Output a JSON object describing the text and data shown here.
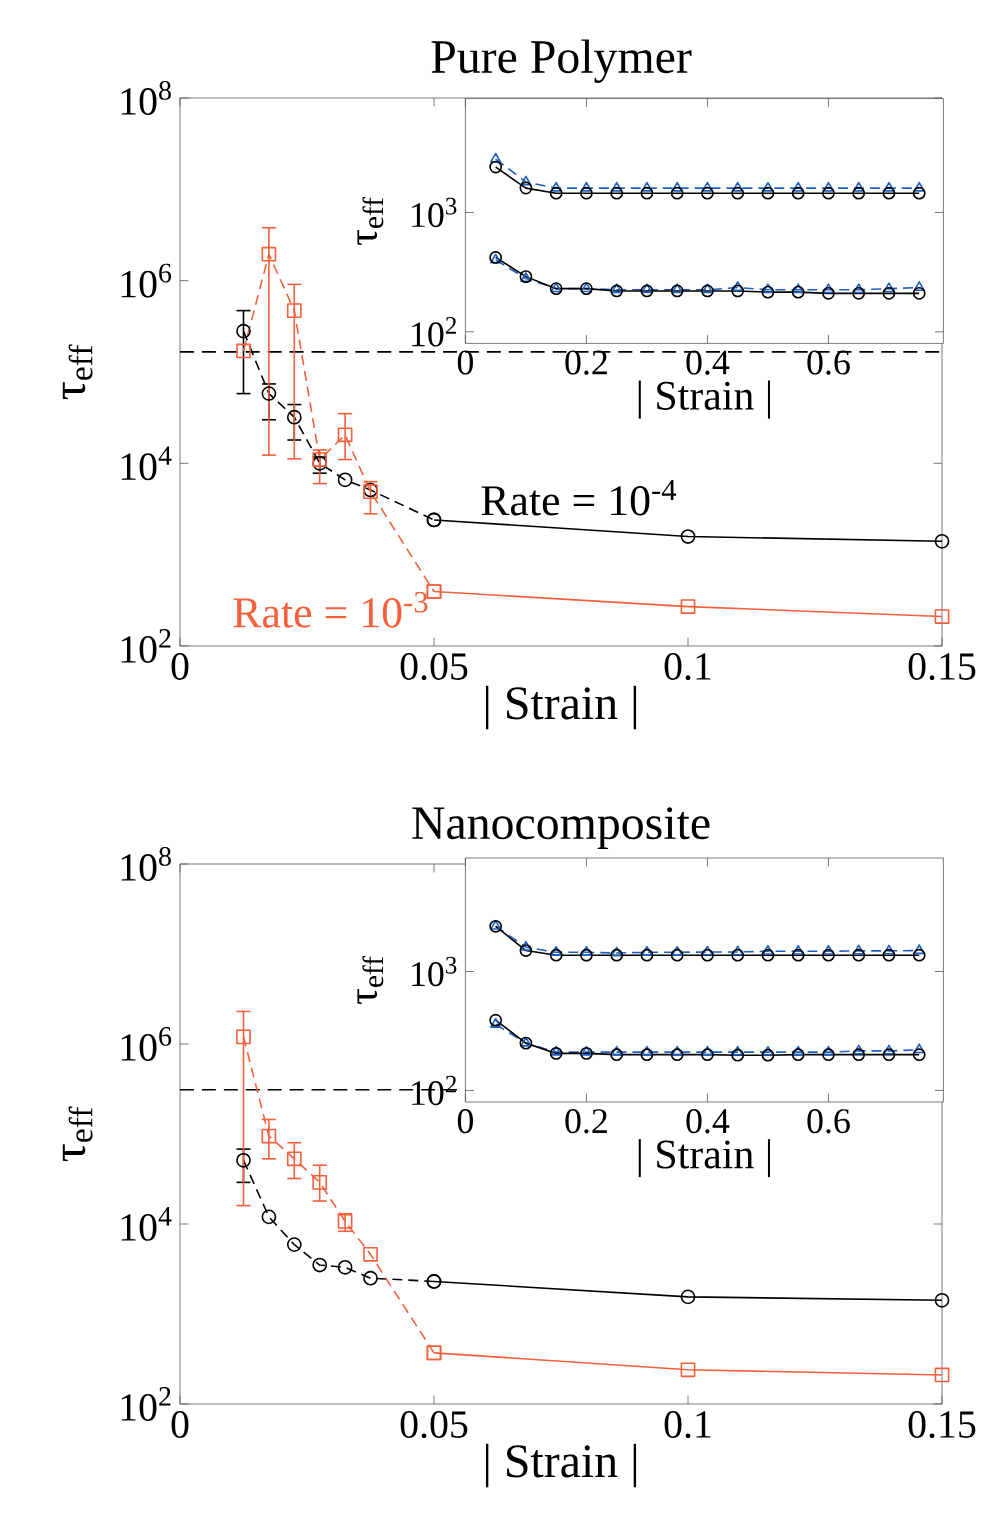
{
  "chart_data": [
    {
      "type": "line",
      "title": "Pure Polymer",
      "xlabel": "| Strain |",
      "ylabel": "τ$_{eff}$",
      "log": "y",
      "xlim": [
        0,
        0.15
      ],
      "ylim": [
        100,
        100000000
      ],
      "xticks": [
        0,
        0.05,
        0.1,
        0.15
      ],
      "yticks": [
        {
          "value": 100,
          "label": "10$^{2}$"
        },
        {
          "value": 10000,
          "label": "10$^{4}$"
        },
        {
          "value": 1000000,
          "label": "10$^{6}$"
        },
        {
          "value": 100000000,
          "label": "10$^{8}$"
        }
      ],
      "ref_lines": [
        {
          "axis": "y",
          "value": 166000,
          "color": "#000000",
          "line_style": "dashed"
        }
      ],
      "series": [
        {
          "name": "Rate = 10$^{-4}$",
          "color": "#000000",
          "marker": "circle",
          "line_style": "dashed",
          "x": [
            0.0125,
            0.0175,
            0.0225,
            0.0275,
            0.0325,
            0.0375,
            0.05
          ],
          "values": [
            280000,
            58000,
            32000,
            10000,
            6600,
            5100,
            2400
          ],
          "errors": [
            [
              58000,
              470000
            ],
            [
              30000,
              74000
            ],
            [
              18000,
              44000
            ],
            [
              7800,
              11700
            ],
            null,
            null,
            null
          ]
        },
        {
          "color": "#000000",
          "marker": "circle",
          "line_style": "solid",
          "x": [
            0.05,
            0.1,
            0.15
          ],
          "values": [
            2400,
            1580,
            1400
          ]
        },
        {
          "name": "Rate = 10$^{-3}$",
          "color": "#f4603c",
          "marker": "square",
          "line_style": "dashed",
          "x": [
            0.0125,
            0.0175,
            0.0225,
            0.0275,
            0.0325,
            0.0375,
            0.05
          ],
          "values": [
            170000,
            1950000,
            470000,
            11000,
            20500,
            4900,
            395
          ],
          "errors": [
            null,
            [
              12300,
              3800000
            ],
            [
              11200,
              910000
            ],
            [
              6000,
              14000
            ],
            [
              11000,
              35000
            ],
            [
              2800,
              6300
            ],
            null
          ]
        },
        {
          "color": "#f4603c",
          "marker": "square",
          "line_style": "solid",
          "x": [
            0.05,
            0.1,
            0.15
          ],
          "values": [
            395,
            270,
            210
          ]
        }
      ]
    },
    {
      "type": "line",
      "xlabel": "| Strain |",
      "ylabel": "τ$_{eff}$",
      "log": "y",
      "xlim": [
        0,
        0.79
      ],
      "ylim": [
        80,
        9000
      ],
      "xticks": [
        0,
        0.2,
        0.4,
        0.6
      ],
      "yticks": [
        {
          "value": 100,
          "label": "10$^{2}$"
        },
        {
          "value": 1000,
          "label": "10$^{3}$"
        }
      ],
      "x": [
        0.05,
        0.1,
        0.15,
        0.2,
        0.25,
        0.3,
        0.35,
        0.4,
        0.45,
        0.5,
        0.55,
        0.6,
        0.65,
        0.7,
        0.75
      ],
      "series": [
        {
          "color": "#2060c0",
          "marker": "triangle",
          "line_style": "dashed",
          "values": [
            2800,
            1800,
            1600,
            1600,
            1600,
            1600,
            1600,
            1600,
            1600,
            1600,
            1600,
            1600,
            1600,
            1600,
            1600
          ]
        },
        {
          "color": "#000000",
          "marker": "circle",
          "line_style": "solid",
          "values": [
            2400,
            1600,
            1450,
            1450,
            1450,
            1450,
            1450,
            1450,
            1450,
            1450,
            1450,
            1450,
            1450,
            1450,
            1450
          ]
        },
        {
          "color": "#2060c0",
          "marker": "triangle",
          "line_style": "dashed",
          "values": [
            400,
            280,
            230,
            230,
            225,
            225,
            225,
            225,
            235,
            225,
            225,
            225,
            225,
            230,
            235
          ]
        },
        {
          "color": "#000000",
          "marker": "circle",
          "line_style": "solid",
          "values": [
            420,
            290,
            230,
            230,
            220,
            220,
            220,
            220,
            220,
            215,
            215,
            210,
            210,
            210,
            210
          ]
        }
      ]
    },
    {
      "type": "line",
      "title": "Nanocomposite",
      "xlabel": "| Strain |",
      "ylabel": "τ$_{eff}$",
      "log": "y",
      "xlim": [
        0,
        0.15
      ],
      "ylim": [
        100,
        100000000
      ],
      "xticks": [
        0,
        0.05,
        0.1,
        0.15
      ],
      "yticks": [
        {
          "value": 100,
          "label": "10$^{2}$"
        },
        {
          "value": 10000,
          "label": "10$^{4}$"
        },
        {
          "value": 1000000,
          "label": "10$^{6}$"
        },
        {
          "value": 100000000,
          "label": "10$^{8}$"
        }
      ],
      "ref_lines": [
        {
          "axis": "y",
          "value": 310000,
          "color": "#000000",
          "line_style": "dashed"
        }
      ],
      "series": [
        {
          "color": "#000000",
          "marker": "circle",
          "line_style": "dashed",
          "x": [
            0.0125,
            0.0175,
            0.0225,
            0.0275,
            0.0325,
            0.0375,
            0.05
          ],
          "values": [
            51000,
            12000,
            5900,
            3500,
            3300,
            2500,
            2300
          ],
          "errors": [
            [
              29000,
              68000
            ],
            null,
            null,
            null,
            null,
            null,
            null
          ]
        },
        {
          "color": "#000000",
          "marker": "circle",
          "line_style": "solid",
          "x": [
            0.05,
            0.1,
            0.15
          ],
          "values": [
            2300,
            1550,
            1420
          ]
        },
        {
          "color": "#f4603c",
          "marker": "square",
          "line_style": "dashed",
          "x": [
            0.0125,
            0.0175,
            0.0225,
            0.0275,
            0.0325,
            0.0375,
            0.05
          ],
          "values": [
            1200000,
            95000,
            53000,
            29000,
            10700,
            4600,
            370
          ],
          "errors": [
            [
              16000,
              2300000
            ],
            [
              53000,
              145000
            ],
            [
              32000,
              80000
            ],
            [
              18000,
              45000
            ],
            [
              8300,
              13000
            ],
            null,
            null
          ]
        },
        {
          "color": "#f4603c",
          "marker": "square",
          "line_style": "solid",
          "x": [
            0.05,
            0.1,
            0.15
          ],
          "values": [
            370,
            240,
            210
          ]
        }
      ]
    },
    {
      "type": "line",
      "xlabel": "| Strain |",
      "ylabel": "τ$_{eff}$",
      "log": "y",
      "xlim": [
        0,
        0.79
      ],
      "ylim": [
        80,
        9000
      ],
      "xticks": [
        0,
        0.2,
        0.4,
        0.6
      ],
      "yticks": [
        {
          "value": 100,
          "label": "10$^{2}$"
        },
        {
          "value": 1000,
          "label": "10$^{3}$"
        }
      ],
      "x": [
        0.05,
        0.1,
        0.15,
        0.2,
        0.25,
        0.3,
        0.35,
        0.4,
        0.45,
        0.5,
        0.55,
        0.6,
        0.65,
        0.7,
        0.75
      ],
      "series": [
        {
          "color": "#2060c0",
          "marker": "triangle",
          "line_style": "dashed",
          "values": [
            2400,
            1600,
            1450,
            1450,
            1430,
            1450,
            1450,
            1460,
            1460,
            1480,
            1480,
            1480,
            1490,
            1490,
            1500
          ]
        },
        {
          "color": "#000000",
          "marker": "circle",
          "line_style": "solid",
          "values": [
            2400,
            1500,
            1370,
            1370,
            1370,
            1370,
            1370,
            1370,
            1370,
            1370,
            1370,
            1370,
            1370,
            1370,
            1370
          ]
        },
        {
          "color": "#2060c0",
          "marker": "triangle",
          "line_style": "dashed",
          "values": [
            360,
            250,
            210,
            210,
            210,
            210,
            210,
            210,
            210,
            210,
            210,
            210,
            215,
            215,
            220
          ]
        },
        {
          "color": "#000000",
          "marker": "circle",
          "line_style": "solid",
          "values": [
            390,
            250,
            205,
            205,
            200,
            200,
            200,
            200,
            198,
            198,
            200,
            200,
            200,
            200,
            200
          ]
        }
      ]
    }
  ]
}
